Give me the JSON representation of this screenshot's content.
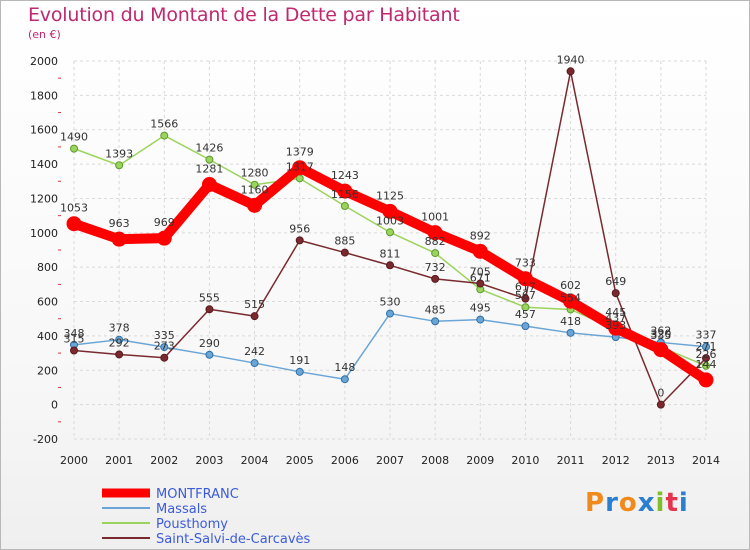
{
  "title": "Evolution du Montant de la Dette par Habitant",
  "unit": "(en €)",
  "brand": {
    "text": "Proxiti",
    "colors": [
      "#f08a1c",
      "#2a7fd0",
      "#f08a1c",
      "#2a7fd0",
      "#7fbf2a",
      "#e5334d",
      "#2a7fd0"
    ]
  },
  "chart_data": {
    "type": "line",
    "x": [
      2000,
      2001,
      2002,
      2003,
      2004,
      2005,
      2006,
      2007,
      2008,
      2009,
      2010,
      2011,
      2012,
      2013,
      2014
    ],
    "ylim": [
      -200,
      2000
    ],
    "yticks": [
      -200,
      0,
      200,
      400,
      600,
      800,
      1000,
      1200,
      1400,
      1600,
      1800,
      2000
    ],
    "grid": true,
    "legend_position": "bottom-left",
    "series": [
      {
        "name": "MONTFRANC",
        "color": "#ff0000",
        "values": [
          1053,
          963,
          969,
          1281,
          1160,
          1379,
          1243,
          1125,
          1001,
          892,
          733,
          602,
          445,
          320,
          144
        ]
      },
      {
        "name": "Massals",
        "color": "#6aa5d6",
        "values": [
          348,
          378,
          335,
          290,
          242,
          191,
          148,
          530,
          485,
          495,
          457,
          418,
          393,
          362,
          337
        ]
      },
      {
        "name": "Pousthomy",
        "color": "#9bd45c",
        "values": [
          1490,
          1393,
          1566,
          1426,
          1280,
          1317,
          1156,
          1003,
          882,
          671,
          567,
          554,
          437,
          335,
          226
        ]
      },
      {
        "name": "Saint-Salvi-de-Carcavès",
        "color": "#7a2a2f",
        "values": [
          315,
          292,
          273,
          555,
          515,
          956,
          885,
          811,
          732,
          705,
          617,
          1940,
          649,
          0,
          271
        ]
      }
    ]
  }
}
